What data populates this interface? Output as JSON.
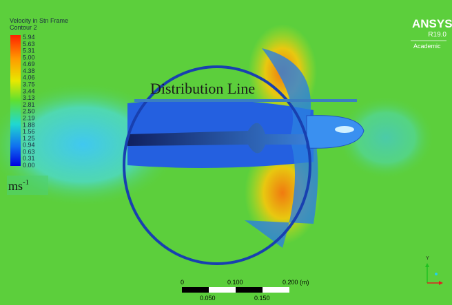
{
  "legend": {
    "title": "Velocity in Stn Frame",
    "subtitle": "Contour 2",
    "levels": [
      "5.94",
      "5.63",
      "5.31",
      "5.00",
      "4.69",
      "4.38",
      "4.06",
      "3.75",
      "3.44",
      "3.13",
      "2.81",
      "2.50",
      "2.19",
      "1.88",
      "1.56",
      "1.25",
      "0.94",
      "0.63",
      "0.31",
      "0.00"
    ],
    "unit": {
      "base": "ms",
      "exponent": "-1"
    }
  },
  "annotation": "Distribution Line",
  "logo": {
    "name": "ANSYS",
    "version": "R19.0",
    "edition": "Academic"
  },
  "scale_bar": {
    "top_labels": [
      "0",
      "0.100",
      "0.200 (m)"
    ],
    "bottom_labels": [
      "0.050",
      "0.150"
    ]
  },
  "triad": {
    "axis": "Y"
  }
}
